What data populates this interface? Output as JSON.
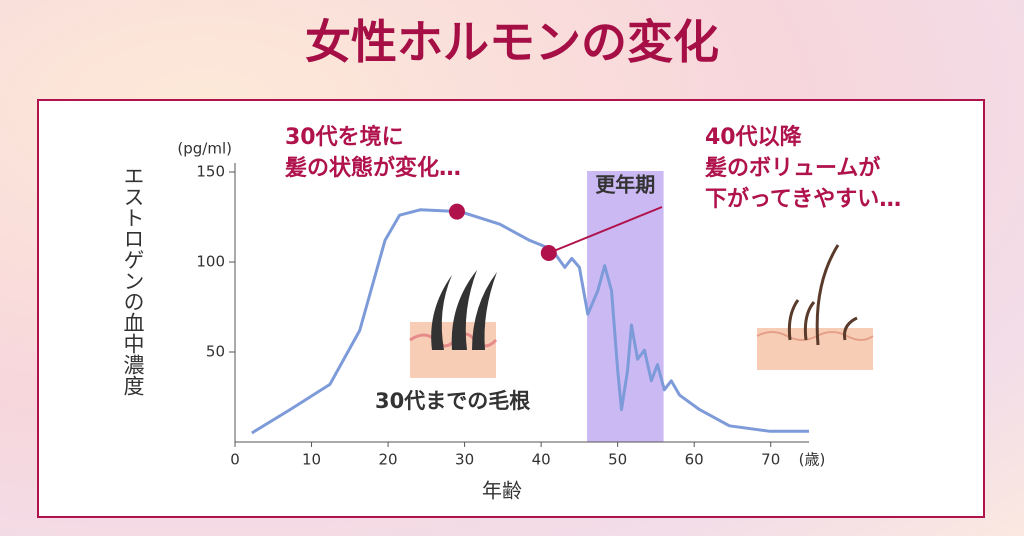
{
  "chart_data": {
    "type": "line",
    "title": "女性ホルモンの変化",
    "y_unit": "(pg/ml)",
    "y_label": "エストロゲンの血中濃度",
    "x_label": "年齢",
    "x_unit": "(歳)",
    "x": [
      2.2,
      7.2,
      12.4,
      16.3,
      19.6,
      21.5,
      24.2,
      29.4,
      34.6,
      38.5,
      41.4,
      43.1,
      44,
      45,
      46.1,
      47.4,
      48.3,
      49.2,
      50,
      50.5,
      51.3,
      51.8,
      52.6,
      53.5,
      54.4,
      55.2,
      56.1,
      57,
      58.1,
      60.7,
      64.6,
      69.8,
      75
    ],
    "values": [
      5,
      18,
      32,
      62,
      112,
      126,
      129,
      128,
      121,
      112,
      107,
      97,
      102,
      97,
      71,
      84,
      98,
      84,
      40,
      18,
      40,
      65,
      46,
      51,
      34,
      43,
      29,
      34,
      26,
      18,
      9,
      6,
      6
    ],
    "color": "#7d9ad9",
    "xlim": [
      0,
      75
    ],
    "xticks": [
      0,
      10,
      20,
      30,
      40,
      50,
      60,
      70
    ],
    "ylim": [
      0,
      155
    ],
    "yticks": [
      50,
      100,
      150
    ],
    "highlights": {
      "x": [
        29,
        41
      ],
      "values": [
        128,
        105
      ],
      "color": "#b0124c"
    },
    "band": {
      "label": "更年期",
      "x": [
        46,
        56
      ],
      "color": "#b9a1f0"
    },
    "annotations": [
      {
        "lines": [
          "30代を境に",
          "髪の状態が変化…"
        ]
      },
      {
        "lines": [
          "40代以降",
          "髪のボリュームが",
          "下がってきやすい…"
        ]
      },
      {
        "lines": [
          "30代までの毛根"
        ]
      }
    ]
  }
}
